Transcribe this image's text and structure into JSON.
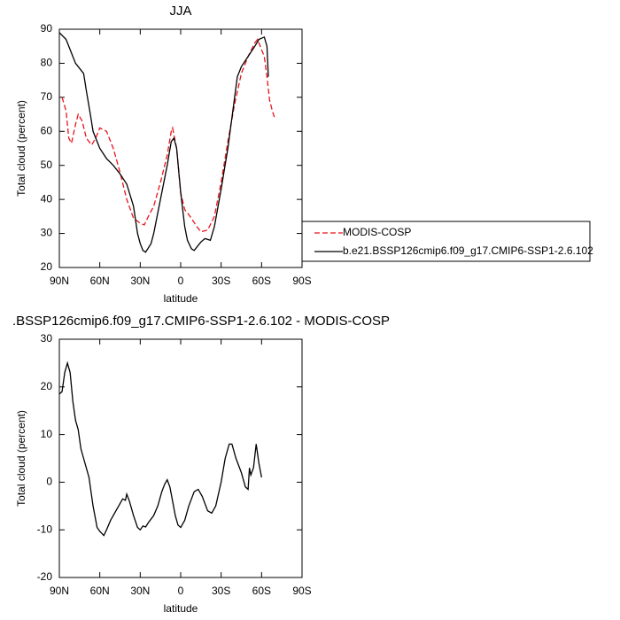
{
  "chart_data": [
    {
      "type": "line",
      "title": "JJA",
      "xlabel": "latitude",
      "ylabel": "Total cloud (percent)",
      "xlim": [
        90,
        -90
      ],
      "ylim": [
        20,
        90
      ],
      "xticks": [
        {
          "value": 90,
          "label": "90N"
        },
        {
          "value": 60,
          "label": "60N"
        },
        {
          "value": 30,
          "label": "30N"
        },
        0,
        {
          "value": -30,
          "label": "30S"
        },
        {
          "value": -60,
          "label": "60S"
        },
        {
          "value": -90,
          "label": "90S"
        }
      ],
      "yticks": [
        20,
        30,
        40,
        50,
        60,
        70,
        80,
        90
      ],
      "legend": "right",
      "series": [
        {
          "name": "MODIS-COSP",
          "color": "#e8141b",
          "dash": true,
          "x": [
            88,
            85,
            83,
            81,
            78,
            76,
            73,
            70,
            66,
            63,
            60,
            55,
            50,
            45,
            40,
            35,
            30,
            27,
            24,
            20,
            15,
            10,
            7,
            6,
            3,
            0,
            -3,
            -7,
            -12,
            -15,
            -20,
            -25,
            -30,
            -35,
            -40,
            -45,
            -50,
            -55,
            -57,
            -60,
            -62,
            -64,
            -66,
            -68,
            -70
          ],
          "values": [
            70,
            66,
            58,
            56.5,
            62,
            65,
            63,
            58,
            56,
            58,
            61,
            60,
            55,
            48,
            40,
            34.5,
            33,
            32.5,
            35,
            38,
            45,
            53,
            60,
            61,
            55,
            42,
            37,
            35,
            32,
            30.5,
            31,
            35,
            45,
            57,
            68,
            77,
            82,
            86,
            87,
            84,
            82,
            76,
            69,
            66,
            63.5
          ]
        },
        {
          "name": "b.e21.BSSP126cmip6.f09_g17.CMIP6-SSP1-2.6.102",
          "color": "#000000",
          "dash": false,
          "x": [
            90,
            85,
            81,
            78,
            75,
            72,
            70,
            67,
            65,
            60,
            55,
            50,
            45,
            40,
            35,
            32,
            30,
            28,
            26,
            22,
            20,
            15,
            10,
            7,
            5,
            3,
            0,
            -3,
            -5,
            -8,
            -10,
            -15,
            -18,
            -22,
            -25,
            -30,
            -35,
            -40,
            -42,
            -45,
            -50,
            -55,
            -58,
            -62,
            -64,
            -65
          ],
          "values": [
            89,
            87,
            83,
            80,
            78.5,
            77,
            72,
            65,
            60,
            55,
            52,
            50,
            47.5,
            44.5,
            38,
            30,
            27,
            25,
            24.5,
            27,
            30,
            40,
            50,
            57,
            58,
            55,
            42,
            32,
            28,
            25.5,
            25,
            27.5,
            28.5,
            28,
            32,
            43,
            55,
            70,
            76,
            79,
            82,
            85,
            87,
            87.7,
            85,
            76
          ]
        }
      ]
    },
    {
      "type": "line",
      "title": ".BSSP126cmip6.f09_g17.CMIP6-SSP1-2.6.102 - MODIS-COSP",
      "xlabel": "latitude",
      "ylabel": "Total cloud (percent)",
      "xlim": [
        90,
        -90
      ],
      "ylim": [
        -20,
        30
      ],
      "xticks": [
        {
          "value": 90,
          "label": "90N"
        },
        {
          "value": 60,
          "label": "60N"
        },
        {
          "value": 30,
          "label": "30N"
        },
        0,
        {
          "value": -30,
          "label": "30S"
        },
        {
          "value": -60,
          "label": "60S"
        },
        {
          "value": -90,
          "label": "90S"
        }
      ],
      "yticks": [
        -20,
        -10,
        0,
        10,
        20,
        30
      ],
      "series": [
        {
          "color": "#000000",
          "dash": false,
          "x": [
            90,
            88,
            86,
            84,
            82,
            80,
            78,
            76,
            74,
            71,
            68,
            65,
            62,
            60,
            57,
            55,
            52,
            48,
            45,
            43,
            41,
            40,
            38,
            35,
            32,
            30,
            28,
            26,
            24,
            20,
            17,
            14,
            12,
            10,
            8,
            6,
            4,
            2,
            0,
            -3,
            -6,
            -10,
            -13,
            -16,
            -20,
            -23,
            -26,
            -30,
            -33,
            -36,
            -38,
            -41,
            -45,
            -48,
            -50,
            -51,
            -52,
            -54,
            -56,
            -58,
            -60
          ],
          "values": [
            18.5,
            19,
            23,
            25,
            23,
            17,
            13,
            11,
            7,
            4,
            1,
            -5,
            -9.5,
            -10.3,
            -11.2,
            -10,
            -8,
            -6,
            -4.5,
            -3.5,
            -3.8,
            -2.5,
            -4,
            -7,
            -9.5,
            -10,
            -9.2,
            -9.4,
            -8.5,
            -7,
            -5,
            -2,
            -0.5,
            0.5,
            -1,
            -4,
            -7,
            -9,
            -9.5,
            -8,
            -5,
            -2,
            -1.5,
            -3,
            -6,
            -6.5,
            -5,
            0,
            5,
            8,
            8,
            5,
            2,
            -1,
            -1.5,
            3,
            1.5,
            3,
            8,
            4,
            1
          ]
        }
      ]
    }
  ]
}
